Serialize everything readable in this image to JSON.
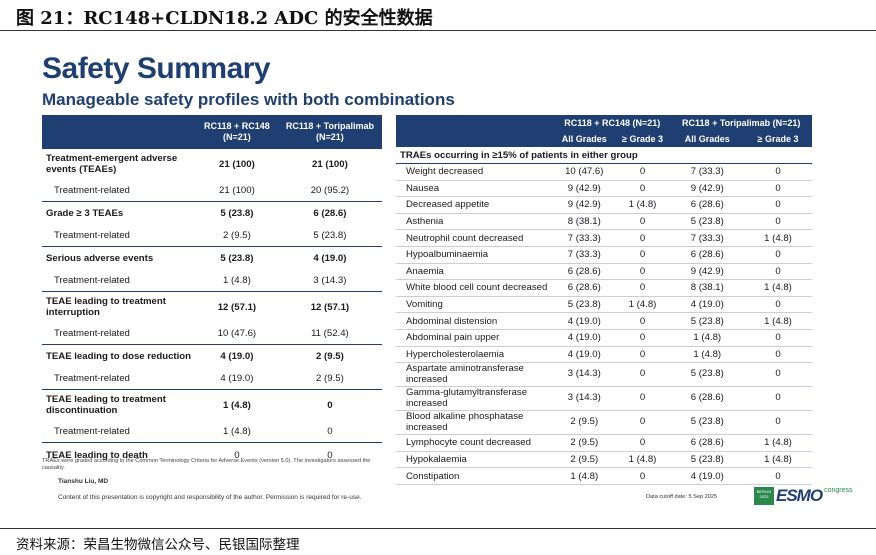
{
  "figure_title": "图 21：RC148+CLDN18.2 ADC 的安全性数据",
  "slide": {
    "title": "Safety Summary",
    "subtitle": "Manageable safety profiles with both combinations"
  },
  "left_table": {
    "headers": [
      "",
      "RC118 + RC148 (N=21)",
      "RC118 + Toripalimab (N=21)"
    ],
    "groups": [
      {
        "label": "Treatment-emergent adverse events (TEAEs)",
        "a": "21 (100)",
        "b": "21 (100)",
        "sub": {
          "label": "Treatment-related",
          "a": "21 (100)",
          "b": "20 (95.2)"
        }
      },
      {
        "label": "Grade ≥ 3 TEAEs",
        "a": "5 (23.8)",
        "b": "6 (28.6)",
        "sub": {
          "label": "Treatment-related",
          "a": "2 (9.5)",
          "b": "5 (23.8)"
        }
      },
      {
        "label": "Serious adverse events",
        "a": "5 (23.8)",
        "b": "4 (19.0)",
        "sub": {
          "label": "Treatment-related",
          "a": "1 (4.8)",
          "b": "3 (14.3)"
        }
      },
      {
        "label": "TEAE leading to treatment interruption",
        "a": "12 (57.1)",
        "b": "12 (57.1)",
        "sub": {
          "label": "Treatment-related",
          "a": "10 (47.6)",
          "b": "11 (52.4)"
        }
      },
      {
        "label": "TEAE leading to dose reduction",
        "a": "4 (19.0)",
        "b": "2 (9.5)",
        "sub": {
          "label": "Treatment-related",
          "a": "4 (19.0)",
          "b": "2 (9.5)"
        }
      },
      {
        "label": "TEAE leading to treatment discontinuation",
        "a": "1 (4.8)",
        "b": "0",
        "sub": {
          "label": "Treatment-related",
          "a": "1 (4.8)",
          "b": "0"
        }
      }
    ],
    "last": {
      "label": "TEAE leading to  death",
      "a": "0",
      "b": "0"
    }
  },
  "right_table": {
    "group_a": "RC118 + RC148 (N=21)",
    "group_b": "RC118 + Toripalimab (N=21)",
    "col_all": "All Grades",
    "col_g3": "≥ Grade 3",
    "section": "TRAEs occurring in ≥15% of patients in either group",
    "rows": [
      {
        "name": "Weight decreased",
        "a1": "10 (47.6)",
        "a3": "0",
        "b1": "7 (33.3)",
        "b3": "0"
      },
      {
        "name": "Nausea",
        "a1": "9 (42.9)",
        "a3": "0",
        "b1": "9 (42.9)",
        "b3": "0"
      },
      {
        "name": "Decreased appetite",
        "a1": "9 (42.9)",
        "a3": "1 (4.8)",
        "b1": "6 (28.6)",
        "b3": "0"
      },
      {
        "name": "Asthenia",
        "a1": "8 (38.1)",
        "a3": "0",
        "b1": "5 (23.8)",
        "b3": "0"
      },
      {
        "name": "Neutrophil count decreased",
        "a1": "7 (33.3)",
        "a3": "0",
        "b1": "7 (33.3)",
        "b3": "1 (4.8)"
      },
      {
        "name": "Hypoalbuminaemia",
        "a1": "7 (33.3)",
        "a3": "0",
        "b1": "6 (28.6)",
        "b3": "0"
      },
      {
        "name": "Anaemia",
        "a1": "6 (28.6)",
        "a3": "0",
        "b1": "9 (42.9)",
        "b3": "0"
      },
      {
        "name": "White blood cell count decreased",
        "a1": "6 (28.6)",
        "a3": "0",
        "b1": "8 (38.1)",
        "b3": "1 (4.8)"
      },
      {
        "name": "Vomiting",
        "a1": "5 (23.8)",
        "a3": "1 (4.8)",
        "b1": "4 (19.0)",
        "b3": "0"
      },
      {
        "name": "Abdominal distension",
        "a1": "4 (19.0)",
        "a3": "0",
        "b1": "5 (23.8)",
        "b3": "1 (4.8)"
      },
      {
        "name": "Abdominal pain upper",
        "a1": "4 (19.0)",
        "a3": "0",
        "b1": "1 (4.8)",
        "b3": "0"
      },
      {
        "name": "Hypercholesterolaemia",
        "a1": "4 (19.0)",
        "a3": "0",
        "b1": "1 (4.8)",
        "b3": "0"
      },
      {
        "name": "Aspartate aminotransferase increased",
        "a1": "3 (14.3)",
        "a3": "0",
        "b1": "5 (23.8)",
        "b3": "0",
        "tall": true
      },
      {
        "name": "Gamma-glutamyltransferase increased",
        "a1": "3 (14.3)",
        "a3": "0",
        "b1": "6 (28.6)",
        "b3": "0",
        "tall": true
      },
      {
        "name": "Blood alkaline phosphatase increased",
        "a1": "2 (9.5)",
        "a3": "0",
        "b1": "5 (23.8)",
        "b3": "0",
        "tall": true
      },
      {
        "name": "Lymphocyte count decreased",
        "a1": "2 (9.5)",
        "a3": "0",
        "b1": "6 (28.6)",
        "b3": "1 (4.8)"
      },
      {
        "name": "Hypokalaemia",
        "a1": "2 (9.5)",
        "a3": "1 (4.8)",
        "b1": "5 (23.8)",
        "b3": "1 (4.8)"
      },
      {
        "name": "Constipation",
        "a1": "1 (4.8)",
        "a3": "0",
        "b1": "4 (19.0)",
        "b3": "0"
      }
    ]
  },
  "footnote": "TRAEs were graded according to the Common Terminology Criteria for Adverse Events (version 5.0). The investigators assessed the causality.",
  "presenter": "Tianshu Liu, MD",
  "copyright": "Content of this presentation is copyright and responsibility of the author. Permission is required for re-use.",
  "cutoff": "Data cutoff date: 5 Sep 2025",
  "logo": {
    "badge": "BERLIN 2025",
    "text": "ESMO",
    "congress": "congress"
  },
  "source": "资料来源：荣昌生物微信公众号、民银国际整理",
  "colors": {
    "primary": "#1f3f73",
    "logo_green": "#2a8a4b"
  }
}
